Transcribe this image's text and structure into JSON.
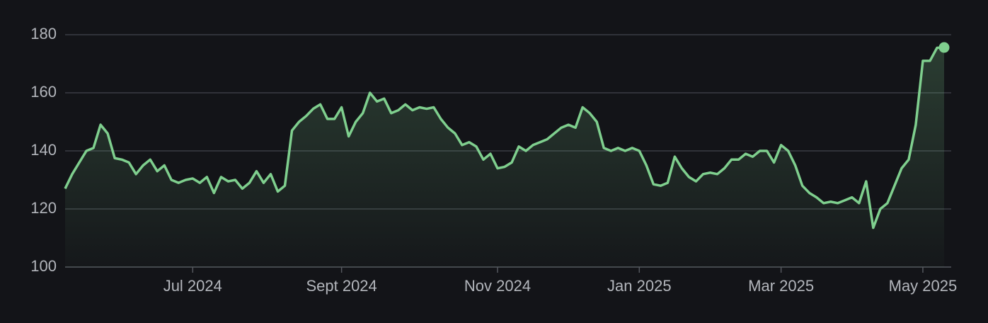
{
  "chart_data": {
    "type": "line",
    "color": "#7fcf8e",
    "grid": true,
    "ylim": [
      100,
      180
    ],
    "yticks": [
      100,
      120,
      140,
      160,
      180
    ],
    "categories": [
      null,
      null,
      null,
      null,
      null,
      null,
      null,
      null,
      null,
      null,
      null,
      null,
      null,
      null,
      null,
      null,
      null,
      null,
      "Jul 2024",
      null,
      null,
      null,
      null,
      null,
      null,
      null,
      null,
      null,
      null,
      null,
      null,
      null,
      null,
      null,
      null,
      null,
      null,
      null,
      null,
      "Sept 2024",
      null,
      null,
      null,
      null,
      null,
      null,
      null,
      null,
      null,
      null,
      null,
      null,
      null,
      null,
      null,
      null,
      null,
      null,
      null,
      null,
      null,
      "Nov 2024",
      null,
      null,
      null,
      null,
      null,
      null,
      null,
      null,
      null,
      null,
      null,
      null,
      null,
      null,
      null,
      null,
      null,
      null,
      null,
      "Jan 2025",
      null,
      null,
      null,
      null,
      null,
      null,
      null,
      null,
      null,
      null,
      null,
      null,
      null,
      null,
      null,
      null,
      null,
      null,
      null,
      "Mar 2025",
      null,
      null,
      null,
      null,
      null,
      null,
      null,
      null,
      null,
      null,
      null,
      null,
      null,
      null,
      null,
      null,
      null,
      null,
      null,
      "May 2025",
      null,
      null,
      null
    ],
    "values": [
      127,
      132,
      136,
      140,
      141,
      149,
      146,
      137.5,
      137,
      136,
      132,
      135,
      137,
      133,
      135,
      130,
      129,
      130,
      130.5,
      129,
      131,
      125.5,
      131,
      129.5,
      130,
      127,
      129,
      133,
      129,
      132,
      126,
      128,
      147,
      150,
      152,
      154.5,
      156,
      151,
      151,
      155,
      145,
      150,
      153,
      160,
      157,
      158,
      153,
      154,
      156,
      154,
      155,
      154.5,
      155,
      151,
      148,
      146,
      142,
      143,
      141.5,
      137,
      139,
      134,
      134.5,
      136,
      141.5,
      140,
      142,
      143,
      144,
      146,
      148,
      149,
      148,
      155,
      153,
      150,
      141,
      140,
      141,
      140,
      141,
      140,
      135,
      128.5,
      128,
      129,
      138,
      134,
      131,
      129.5,
      132,
      132.5,
      132,
      134,
      137,
      137,
      139,
      138,
      140,
      140,
      136,
      142,
      140,
      135,
      128,
      125.5,
      124,
      122,
      122.5,
      122,
      123,
      124,
      122,
      129.5,
      113.5,
      120,
      122,
      128,
      134,
      137,
      149,
      171,
      171,
      175.5,
      175.6
    ]
  }
}
